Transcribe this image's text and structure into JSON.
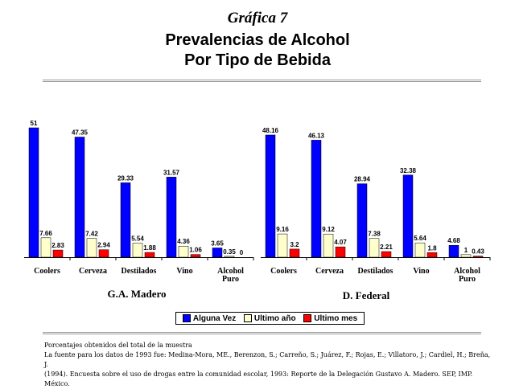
{
  "heading": {
    "grafica": "Gráfica 7",
    "title_line1": "Prevalencias de Alcohol",
    "title_line2": "Por Tipo de Bebida"
  },
  "colors": {
    "alguna_vez": "#0000ff",
    "ultimo_ano": "#ffffcc",
    "ultimo_mes": "#ff0000"
  },
  "chart_data": [
    {
      "type": "bar",
      "group_label": "G.A. Madero",
      "categories": [
        "Coolers",
        "Cerveza",
        "Destilados",
        "Vino",
        "Alcohol Puro"
      ],
      "series": [
        {
          "name": "Alguna Vez",
          "values": [
            51,
            47.35,
            29.33,
            31.57,
            3.65
          ]
        },
        {
          "name": "Ultimo año",
          "values": [
            7.66,
            7.42,
            5.54,
            4.36,
            0.35
          ]
        },
        {
          "name": "Ultimo mes",
          "values": [
            2.83,
            2.94,
            1.88,
            1.06,
            0
          ]
        }
      ],
      "data_labels": [
        [
          "51",
          "47.35",
          "29.33",
          "31.57",
          "3.65"
        ],
        [
          "7.66",
          "7.42",
          "5.54",
          "4.36",
          "0.35"
        ],
        [
          "2.83",
          "2.94",
          "1.88",
          "1.06",
          "0"
        ]
      ],
      "ylim": [
        0,
        55
      ]
    },
    {
      "type": "bar",
      "group_label": "D. Federal",
      "categories": [
        "Coolers",
        "Cerveza",
        "Destilados",
        "Vino",
        "Alcohol Puro"
      ],
      "series": [
        {
          "name": "Alguna Vez",
          "values": [
            48.16,
            46.13,
            28.94,
            32.38,
            4.68
          ]
        },
        {
          "name": "Ultimo año",
          "values": [
            9.16,
            9.12,
            7.38,
            5.64,
            1
          ]
        },
        {
          "name": "Ultimo mes",
          "values": [
            3.2,
            4.07,
            2.21,
            1.8,
            0.43
          ]
        }
      ],
      "data_labels": [
        [
          "48.16",
          "46.13",
          "28.94",
          "32.38",
          "4.68"
        ],
        [
          "9.16",
          "9.12",
          "7.38",
          "5.64",
          "1"
        ],
        [
          "3.2",
          "4.07",
          "2.21",
          "1.8",
          "0.43"
        ]
      ],
      "ylim": [
        0,
        55
      ]
    }
  ],
  "legend": {
    "items": [
      "Alguna Vez",
      "Ultimo año",
      "Ultimo mes"
    ]
  },
  "notes": {
    "line1": "Porcentajes obtenidos del total de la muestra",
    "line2": "La fuente para los datos de 1993 fue: Medina-Mora, ME., Berenzon, S.; Carreño, S.; Juárez, F.; Rojas, E.; Villatoro, J.; Cardiel, H.; Breña, J.",
    "line3": "(1994). Encuesta sobre el uso de drogas entre la comunidad escolar, 1993: Reporte de la Delegación Gustavo A. Madero. SEP, IMP. México."
  }
}
